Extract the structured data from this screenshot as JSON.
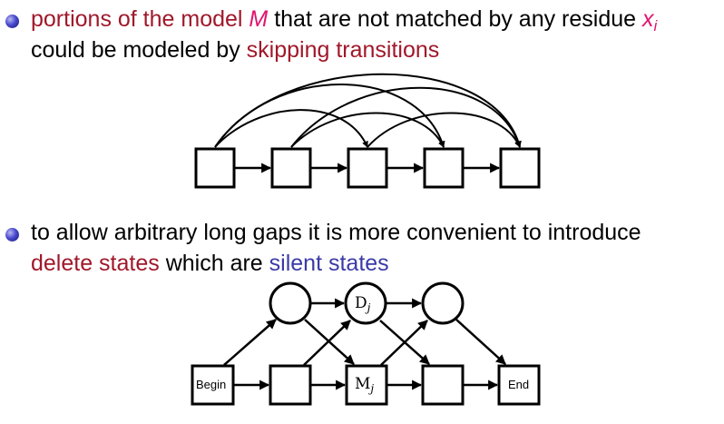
{
  "bullet1": {
    "part1": "portions of the model ",
    "model_symbol": "M",
    "part2": " that are not matched by any residue ",
    "residue_symbol": "x",
    "residue_subscript": "i",
    "line2_part1": "could be modeled by ",
    "line2_highlight": "skipping transitions"
  },
  "bullet2": {
    "line1": "to allow arbitrary long gaps it is more convenient to introduce",
    "delete_states": "delete states",
    "middle": " which are ",
    "silent_states": "silent states"
  },
  "diagram2": {
    "begin_label": "Begin",
    "end_label": "End",
    "delete_label": "D",
    "delete_subscript": "j",
    "match_label": "M",
    "match_subscript": "j"
  },
  "colors": {
    "dark_red": "#a0182a",
    "magenta": "#e0146e",
    "blue": "#3a3aa8"
  }
}
